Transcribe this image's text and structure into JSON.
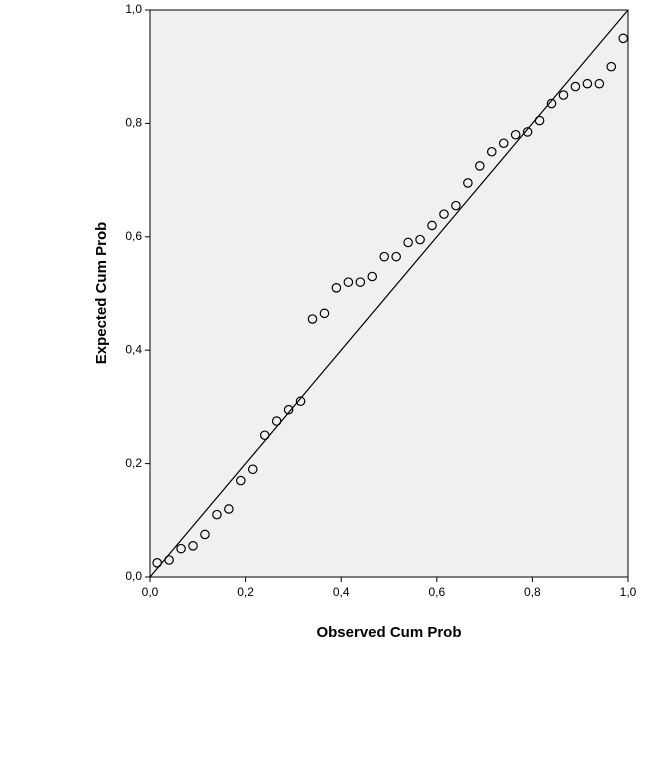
{
  "chart_data": {
    "type": "scatter",
    "xlabel": "Observed Cum Prob",
    "ylabel": "Expected Cum Prob",
    "xlim": [
      0,
      1
    ],
    "ylim": [
      0,
      1
    ],
    "xticks": [
      {
        "value": 0,
        "label": "0,0"
      },
      {
        "value": 0.2,
        "label": "0,2"
      },
      {
        "value": 0.4,
        "label": "0,4"
      },
      {
        "value": 0.6,
        "label": "0,6"
      },
      {
        "value": 0.8,
        "label": "0,8"
      },
      {
        "value": 1,
        "label": "1,0"
      }
    ],
    "yticks": [
      {
        "value": 0,
        "label": "0,0"
      },
      {
        "value": 0.2,
        "label": "0,2"
      },
      {
        "value": 0.4,
        "label": "0,4"
      },
      {
        "value": 0.6,
        "label": "0,6"
      },
      {
        "value": 0.8,
        "label": "0,8"
      },
      {
        "value": 1,
        "label": "1,0"
      }
    ],
    "x": [
      0.015,
      0.04,
      0.065,
      0.09,
      0.115,
      0.14,
      0.165,
      0.19,
      0.215,
      0.24,
      0.265,
      0.29,
      0.315,
      0.34,
      0.365,
      0.39,
      0.415,
      0.44,
      0.465,
      0.49,
      0.515,
      0.54,
      0.565,
      0.59,
      0.615,
      0.64,
      0.665,
      0.69,
      0.715,
      0.74,
      0.765,
      0.79,
      0.815,
      0.84,
      0.865,
      0.89,
      0.915,
      0.94,
      0.965,
      0.99
    ],
    "values": [
      0.025,
      0.03,
      0.05,
      0.055,
      0.075,
      0.11,
      0.12,
      0.17,
      0.19,
      0.25,
      0.275,
      0.295,
      0.31,
      0.455,
      0.465,
      0.51,
      0.52,
      0.52,
      0.53,
      0.565,
      0.565,
      0.59,
      0.595,
      0.62,
      0.64,
      0.655,
      0.695,
      0.725,
      0.75,
      0.765,
      0.78,
      0.785,
      0.805,
      0.835,
      0.85,
      0.865,
      0.87,
      0.87,
      0.9,
      0.95
    ],
    "color": "#000000",
    "background": "#f0f0f0"
  }
}
